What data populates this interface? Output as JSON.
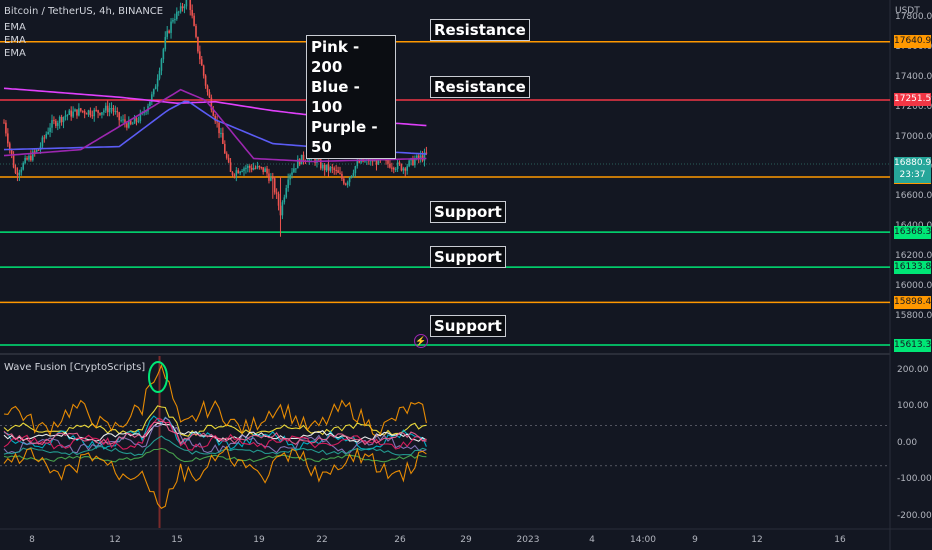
{
  "header": {
    "symbol_title": "Bitcoin / TetherUS, 4h, BINANCE",
    "currency": "USDT",
    "indicators": [
      "EMA",
      "EMA",
      "EMA"
    ]
  },
  "annotations": {
    "ema_legend": [
      "Pink - 200",
      "Blue - 100",
      "Purple - 50"
    ],
    "resistance_1": "Resistance",
    "resistance_2": "Resistance",
    "support_1": "Support",
    "support_2": "Support",
    "support_3": "Support"
  },
  "oscillator": {
    "title": "Wave Fusion [CryptoScripts]"
  },
  "price_axis": {
    "ticks": [
      "17800.00",
      "17600.00",
      "17400.00",
      "17200.00",
      "17000.00",
      "16800.00",
      "16600.00",
      "16400.00",
      "16200.00",
      "16000.00",
      "15800.00"
    ],
    "current_price": "16880.92",
    "countdown": "23:37"
  },
  "osc_axis": {
    "ticks": [
      "200.00",
      "100.00",
      "0.00",
      "-100.00",
      "-200.00"
    ]
  },
  "time_axis": {
    "ticks": [
      "8",
      "12",
      "15",
      "19",
      "22",
      "26",
      "29",
      "2023",
      "4",
      "14:00",
      "9",
      "12",
      "16"
    ]
  },
  "levels": [
    {
      "price": 17640.97,
      "label": "17640.97",
      "color": "#ff9800"
    },
    {
      "price": 17251.59,
      "label": "17251.59",
      "color": "#f23645"
    },
    {
      "price": 16736.56,
      "label": "16736.56",
      "color": "#ff9800"
    },
    {
      "price": 16368.39,
      "label": "16368.39",
      "color": "#00e676"
    },
    {
      "price": 16133.8,
      "label": "16133.80",
      "color": "#00e676"
    },
    {
      "price": 15898.48,
      "label": "15898.48",
      "color": "#ff9800"
    },
    {
      "price": 15613.33,
      "label": "15613.33",
      "color": "#00e676"
    }
  ],
  "colors": {
    "background": "#131722",
    "up_candle": "#26a69a",
    "down_candle": "#ef5350",
    "ema200": "#e040fb",
    "ema100": "#5b5cf5",
    "ema50": "#9c27b0",
    "current_price_tag": "#26a69a"
  },
  "chart_data": {
    "type": "candlestick",
    "title": "Bitcoin / TetherUS, 4h, BINANCE",
    "ylim": [
      15600,
      17900
    ],
    "osc_ylim": [
      -230,
      240
    ],
    "grid": false,
    "x_ticks": [
      "8",
      "12",
      "15",
      "19",
      "22",
      "26",
      "29",
      "2023",
      "4",
      "14:00",
      "9",
      "12",
      "16"
    ],
    "price_path_keypoints": [
      [
        0,
        17100
      ],
      [
        6,
        16760
      ],
      [
        12,
        16850
      ],
      [
        18,
        16920
      ],
      [
        24,
        17080
      ],
      [
        32,
        17150
      ],
      [
        40,
        17180
      ],
      [
        48,
        17170
      ],
      [
        56,
        17200
      ],
      [
        60,
        17120
      ],
      [
        66,
        17080
      ],
      [
        72,
        17150
      ],
      [
        78,
        17300
      ],
      [
        84,
        17650
      ],
      [
        88,
        17800
      ],
      [
        92,
        17850
      ],
      [
        96,
        17950
      ],
      [
        100,
        17650
      ],
      [
        106,
        17300
      ],
      [
        112,
        17050
      ],
      [
        118,
        16760
      ],
      [
        124,
        16800
      ],
      [
        130,
        16800
      ],
      [
        136,
        16780
      ],
      [
        140,
        16700
      ],
      [
        144,
        16500
      ],
      [
        148,
        16750
      ],
      [
        154,
        16850
      ],
      [
        160,
        16880
      ],
      [
        166,
        16800
      ],
      [
        172,
        16780
      ],
      [
        178,
        16700
      ],
      [
        184,
        16830
      ],
      [
        190,
        16850
      ],
      [
        196,
        16840
      ],
      [
        202,
        16820
      ],
      [
        208,
        16800
      ],
      [
        214,
        16850
      ],
      [
        220,
        16880
      ]
    ],
    "ema200_path": [
      [
        0,
        17330
      ],
      [
        60,
        17270
      ],
      [
        90,
        17230
      ],
      [
        110,
        17240
      ],
      [
        140,
        17180
      ],
      [
        180,
        17120
      ],
      [
        220,
        17080
      ]
    ],
    "ema100_path": [
      [
        0,
        16920
      ],
      [
        60,
        16940
      ],
      [
        85,
        17180
      ],
      [
        95,
        17250
      ],
      [
        110,
        17120
      ],
      [
        140,
        16960
      ],
      [
        180,
        16920
      ],
      [
        220,
        16890
      ]
    ],
    "ema50_path": [
      [
        0,
        16880
      ],
      [
        40,
        16920
      ],
      [
        70,
        17150
      ],
      [
        92,
        17320
      ],
      [
        105,
        17250
      ],
      [
        130,
        16860
      ],
      [
        160,
        16840
      ],
      [
        220,
        16860
      ]
    ],
    "current_price": 16880.92
  }
}
